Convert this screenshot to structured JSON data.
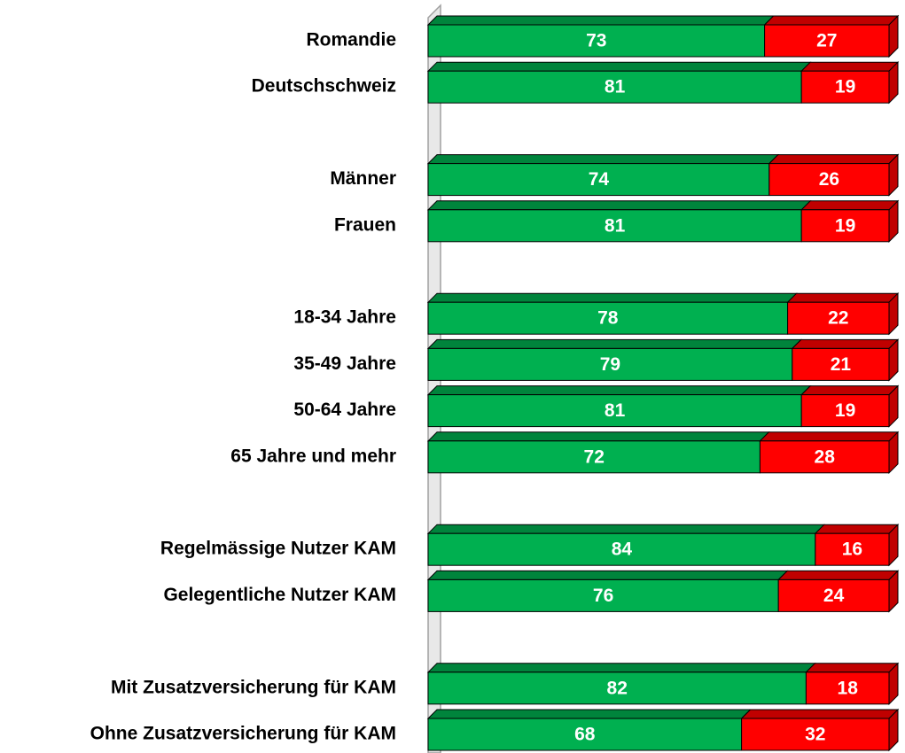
{
  "chart_data": {
    "type": "bar",
    "orientation": "horizontal",
    "stacked": true,
    "categories": [
      "Romandie",
      "Deutschschweiz",
      null,
      "Männer",
      "Frauen",
      null,
      "18-34 Jahre",
      "35-49 Jahre",
      "50-64 Jahre",
      "65 Jahre und mehr",
      null,
      "Regelmässige Nutzer KAM",
      "Gelegentliche Nutzer KAM",
      null,
      "Mit Zusatzversicherung für KAM",
      "Ohne Zusatzversicherung für KAM"
    ],
    "series": [
      {
        "color": "#00b050",
        "top_color": "#00843c",
        "values": [
          73,
          81,
          null,
          74,
          81,
          null,
          78,
          79,
          81,
          72,
          null,
          84,
          76,
          null,
          82,
          68
        ]
      },
      {
        "color": "#ff0000",
        "top_color": "#c00000",
        "values": [
          27,
          19,
          null,
          26,
          19,
          null,
          22,
          21,
          19,
          28,
          null,
          16,
          24,
          null,
          18,
          32
        ]
      }
    ],
    "xlim": [
      0,
      100
    ]
  }
}
